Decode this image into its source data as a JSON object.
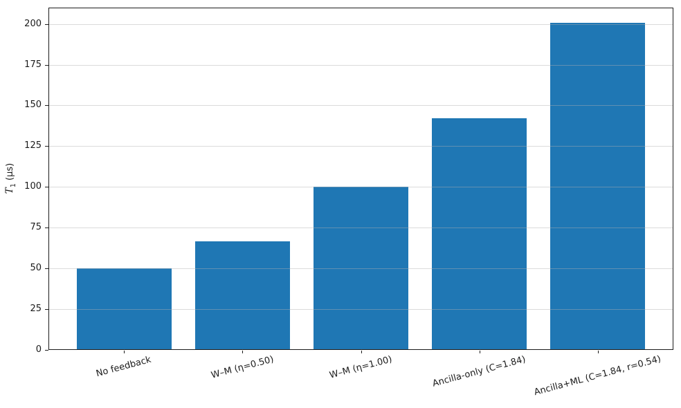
{
  "chart_data": {
    "type": "bar",
    "title": "",
    "xlabel": "",
    "ylabel": "T₁ (μs)",
    "ylabel_parts": {
      "symbol": "T",
      "sub": "1",
      "unit": " (μs)"
    },
    "categories": [
      "No feedback",
      "W–M (η=0.50)",
      "W–M (η=1.00)",
      "Ancilla-only (C=1.84)",
      "Ancilla+ML (C=1.84, r=0.54)"
    ],
    "values": [
      50,
      66.7,
      100,
      142,
      200.5
    ],
    "yticks": [
      0,
      25,
      50,
      75,
      100,
      125,
      150,
      175,
      200
    ],
    "ylim": [
      0,
      210
    ],
    "bar_color": "#1f77b4",
    "bar_rel_width": 0.8,
    "x_edge_padding_units": 0.64,
    "grid": true,
    "grid_axis": "y",
    "grid_color": "#b0b0b0",
    "grid_alpha": 0.45,
    "xtick_rotation_deg": 15,
    "legend": null
  }
}
